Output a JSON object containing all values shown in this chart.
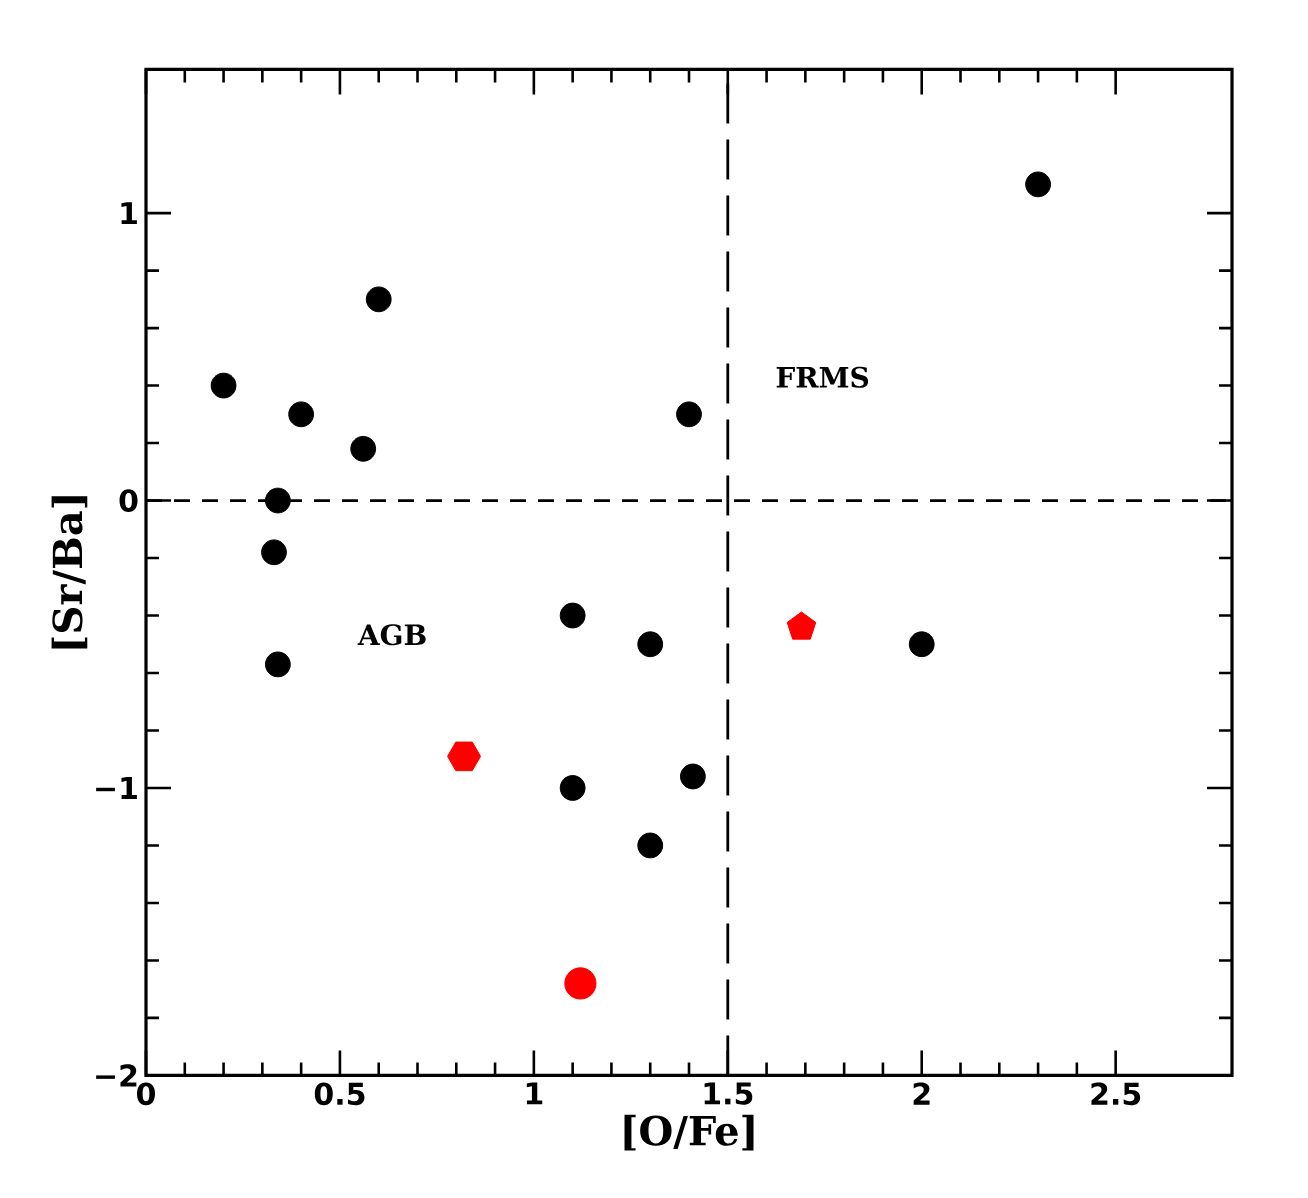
{
  "chart_data": {
    "type": "scatter",
    "xlabel": "[O/Fe]",
    "ylabel": "[Sr/Ba]",
    "xlim": [
      0,
      2.8
    ],
    "ylim": [
      -2,
      1.5
    ],
    "xticks": [
      0,
      0.5,
      1,
      1.5,
      2,
      2.5
    ],
    "yticks": [
      {
        "value": -2,
        "label": "−2"
      },
      {
        "value": -1,
        "label": "−1"
      },
      0,
      1
    ],
    "series": [
      {
        "color": "#000000",
        "marker": "circle",
        "x": [
          0.2,
          0.6,
          0.4,
          0.56,
          0.34,
          0.33,
          1.4,
          2.3,
          0.34,
          1.1,
          1.3,
          1.1,
          1.41,
          1.3,
          2.0
        ],
        "values": [
          0.4,
          0.7,
          0.3,
          0.18,
          0.0,
          -0.18,
          0.3,
          1.1,
          -0.57,
          -0.4,
          -0.5,
          -1.0,
          -0.96,
          -1.2,
          -0.5
        ]
      },
      {
        "color": "#ff0000",
        "x": [
          0.82
        ],
        "values": [
          -0.89
        ]
      },
      {
        "color": "#ff0000",
        "marker": "circle",
        "x": [
          1.12
        ],
        "values": [
          -1.68
        ]
      },
      {
        "color": "#ff0000",
        "x": [
          1.69
        ],
        "values": [
          -0.44
        ]
      }
    ],
    "ref_lines": [
      {
        "axis": "y",
        "value": 0,
        "color": "#000000",
        "line_style": "dashed"
      },
      {
        "axis": "x",
        "value": 1.5,
        "color": "#000000",
        "line_style": "dashed"
      }
    ],
    "annotations": [
      "AGB",
      "FRMS"
    ]
  }
}
